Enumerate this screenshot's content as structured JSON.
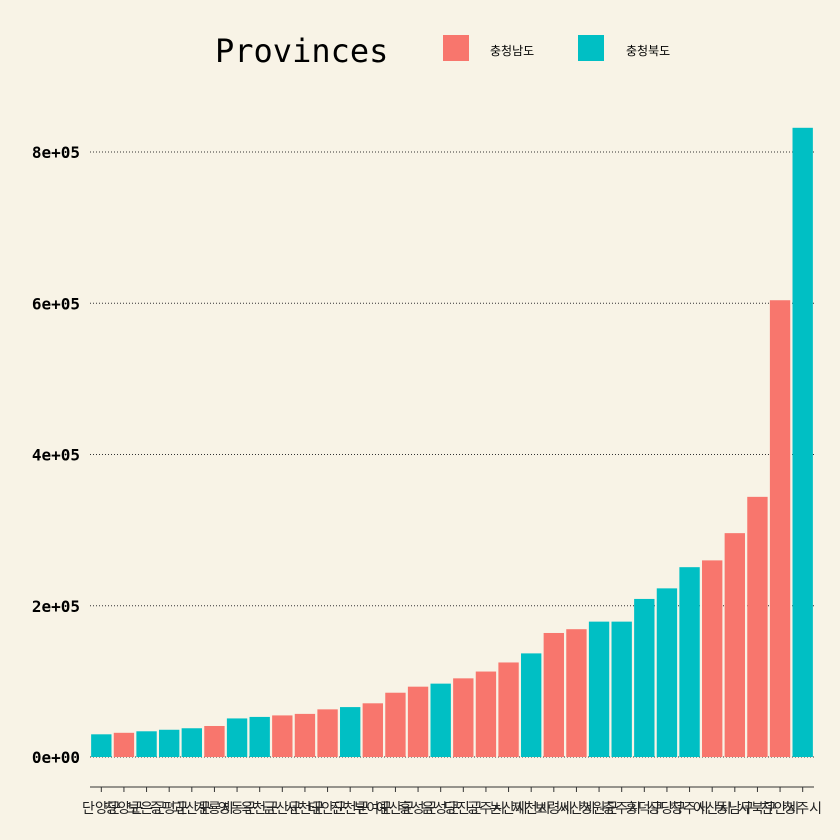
{
  "chart_data": {
    "type": "bar",
    "title": "",
    "xlabel": "",
    "ylabel": "",
    "ylim": [
      0,
      850000
    ],
    "yticks": [
      0,
      200000,
      400000,
      600000,
      800000
    ],
    "ytick_labels": [
      "0e+00",
      "2e+05",
      "4e+05",
      "6e+05",
      "8e+05"
    ],
    "grid": "horizontal-dotted",
    "legend": {
      "title": "Provinces",
      "placement": "top",
      "entries": [
        {
          "label": "충청남도",
          "color": "#f8766d"
        },
        {
          "label": "충청북도",
          "color": "#00bfc4"
        }
      ]
    },
    "colors": {
      "충청남도": "#f8766d",
      "충청북도": "#00bfc4"
    },
    "bars": [
      {
        "category": "단양군",
        "group": "충청북도",
        "value": 30000
      },
      {
        "category": "청양군",
        "group": "충청남도",
        "value": 32000
      },
      {
        "category": "보은군",
        "group": "충청북도",
        "value": 34000
      },
      {
        "category": "증평군",
        "group": "충청북도",
        "value": 36000
      },
      {
        "category": "괴산군",
        "group": "충청북도",
        "value": 38000
      },
      {
        "category": "계룡시",
        "group": "충청남도",
        "value": 41000
      },
      {
        "category": "영동군",
        "group": "충청북도",
        "value": 51000
      },
      {
        "category": "옥천군",
        "group": "충청북도",
        "value": 53000
      },
      {
        "category": "금산군",
        "group": "충청남도",
        "value": 55000
      },
      {
        "category": "서천군",
        "group": "충청남도",
        "value": 57000
      },
      {
        "category": "태안군",
        "group": "충청남도",
        "value": 63000
      },
      {
        "category": "진천군",
        "group": "충청북도",
        "value": 66000
      },
      {
        "category": "부여군",
        "group": "충청남도",
        "value": 71000
      },
      {
        "category": "예산군",
        "group": "충청남도",
        "value": 85000
      },
      {
        "category": "홍성군",
        "group": "충청남도",
        "value": 93000
      },
      {
        "category": "음성군",
        "group": "충청북도",
        "value": 97000
      },
      {
        "category": "당진군",
        "group": "충청남도",
        "value": 104000
      },
      {
        "category": "공주시",
        "group": "충청남도",
        "value": 113000
      },
      {
        "category": "논산시",
        "group": "충청남도",
        "value": 125000
      },
      {
        "category": "제천시",
        "group": "충청북도",
        "value": 137000
      },
      {
        "category": "보령시",
        "group": "충청남도",
        "value": 164000
      },
      {
        "category": "서산시",
        "group": "충청남도",
        "value": 169000
      },
      {
        "category": "청원군",
        "group": "충청북도",
        "value": 179000
      },
      {
        "category": "충주시",
        "group": "충청북도",
        "value": 179000
      },
      {
        "category": "흥덕구",
        "group": "충청북도",
        "value": 209000
      },
      {
        "category": "상당구",
        "group": "충청북도",
        "value": 223000
      },
      {
        "category": "청주시",
        "group": "충청북도",
        "value": 251000
      },
      {
        "category": "아산시",
        "group": "충청남도",
        "value": 260000
      },
      {
        "category": "동남구",
        "group": "충청남도",
        "value": 296000
      },
      {
        "category": "서북구",
        "group": "충청남도",
        "value": 344000
      },
      {
        "category": "천안시",
        "group": "충청남도",
        "value": 604000
      },
      {
        "category": "청주시",
        "group": "충청북도",
        "value": 832000
      }
    ]
  }
}
